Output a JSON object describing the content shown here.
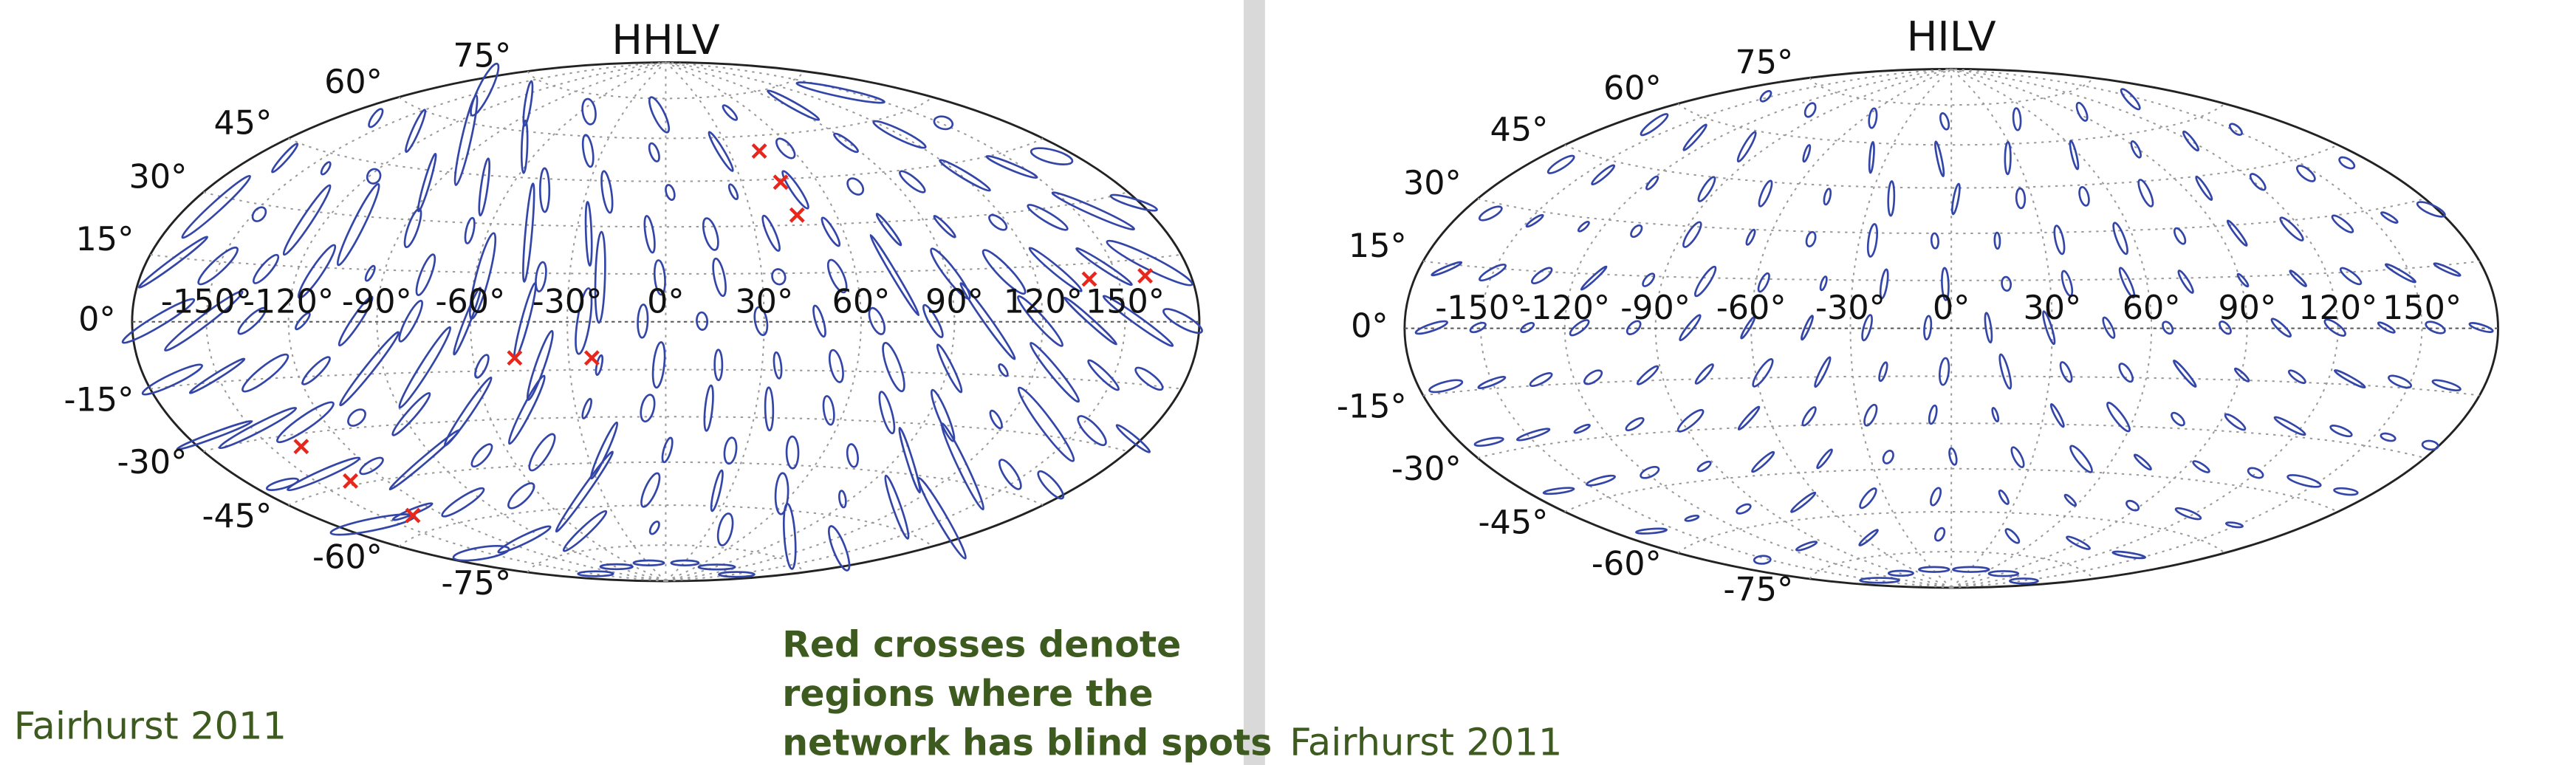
{
  "panels": [
    {
      "title": "HHLV",
      "latitude_labels": [
        "75°",
        "60°",
        "45°",
        "30°",
        "15°",
        "0°",
        "-15°",
        "-30°",
        "-45°",
        "-60°",
        "-75°"
      ],
      "longitude_labels": [
        "-150°",
        "-120°",
        "-90°",
        "-60°",
        "-30°",
        "0°",
        "30°",
        "60°",
        "90°",
        "120°",
        "150°"
      ],
      "credit": "Fairhurst 2011"
    },
    {
      "title": "HILV",
      "latitude_labels": [
        "75°",
        "60°",
        "45°",
        "30°",
        "15°",
        "0°",
        "-15°",
        "-30°",
        "-45°",
        "-60°",
        "-75°"
      ],
      "longitude_labels": [
        "-150°",
        "-120°",
        "-90°",
        "-60°",
        "-30°",
        "0°",
        "30°",
        "60°",
        "90°",
        "120°",
        "150°"
      ],
      "credit": "Fairhurst 2011"
    }
  ],
  "annotation": [
    "Red crosses denote",
    "regions where the",
    "network has blind spots"
  ]
}
